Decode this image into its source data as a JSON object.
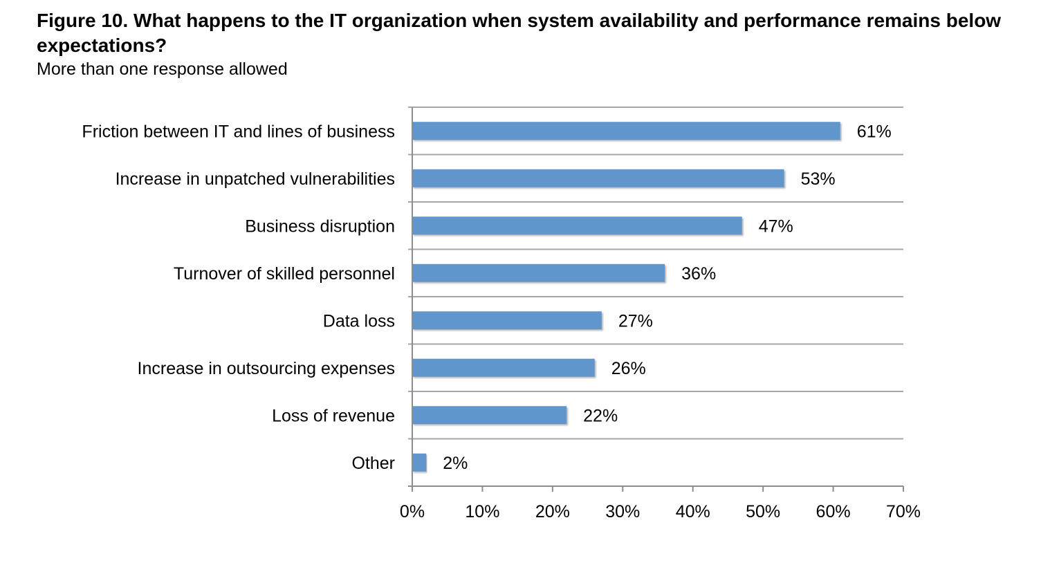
{
  "figure": {
    "title": "Figure 10. What happens to the IT organization when system availability and performance remains below expectations?",
    "subtitle": "More than one response allowed"
  },
  "chart_data": {
    "type": "bar",
    "orientation": "horizontal",
    "title": "Figure 10. What happens to the IT organization when system availability and performance remains below expectations?",
    "subtitle": "More than one response allowed",
    "categories": [
      "Friction between IT and lines of business",
      "Increase in unpatched vulnerabilities",
      "Business disruption",
      "Turnover of skilled personnel",
      "Data loss",
      "Increase in outsourcing expenses",
      "Loss of revenue",
      "Other"
    ],
    "values": [
      61,
      53,
      47,
      36,
      27,
      26,
      22,
      2
    ],
    "data_labels": [
      "61%",
      "53%",
      "47%",
      "36%",
      "27%",
      "26%",
      "22%",
      "2%"
    ],
    "xlim": [
      0,
      70
    ],
    "x_ticks": [
      0,
      10,
      20,
      30,
      40,
      50,
      60,
      70
    ],
    "x_tick_labels": [
      "0%",
      "10%",
      "20%",
      "30%",
      "40%",
      "50%",
      "60%",
      "70%"
    ],
    "xlabel": "",
    "ylabel": "",
    "grid": "horizontal lines between categories",
    "legend": "none",
    "colors": {
      "bar": "#6096cb",
      "bar_shadow": "#c8c8c8",
      "grid": "#a6a6a6",
      "axis": "#8c8c8c"
    }
  }
}
